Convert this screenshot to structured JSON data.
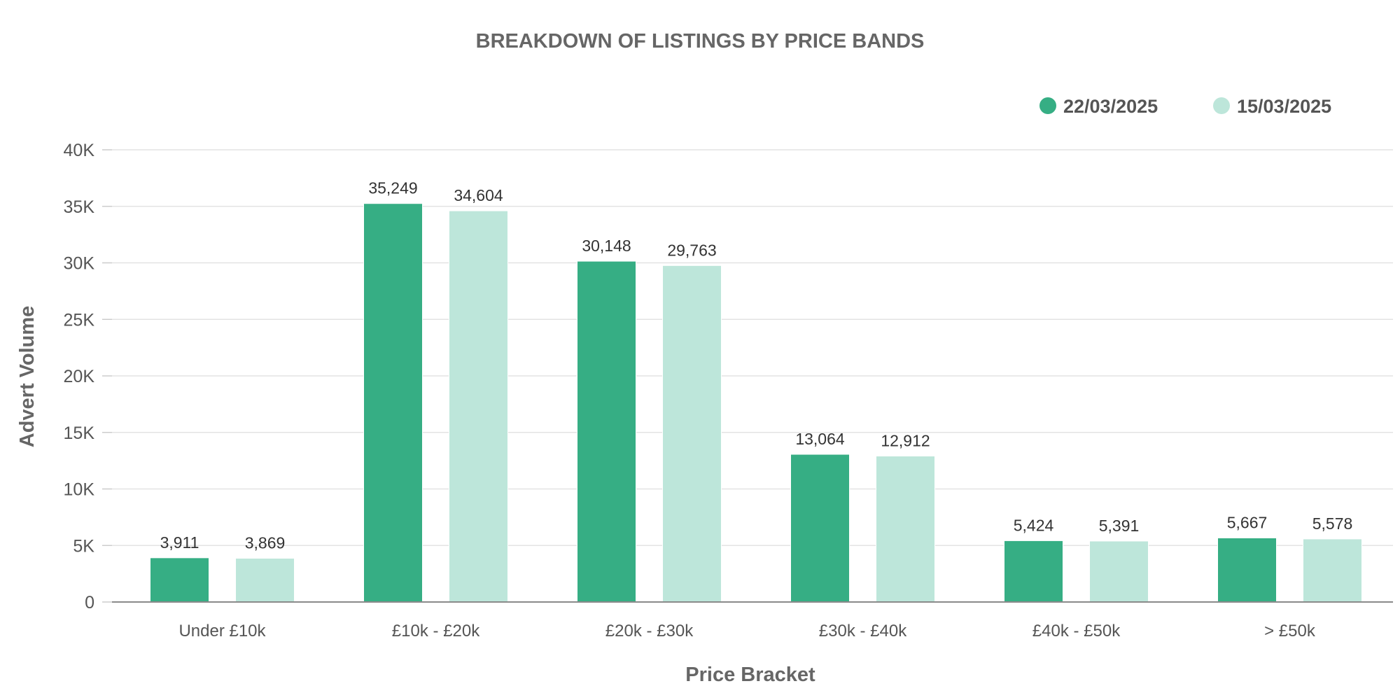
{
  "chart_data": {
    "type": "bar",
    "title": "BREAKDOWN OF LISTINGS BY PRICE BANDS",
    "xlabel": "Price Bracket",
    "ylabel": "Advert Volume",
    "categories": [
      "Under £10k",
      "£10k - £20k",
      "£20k - £30k",
      "£30k - £40k",
      "£40k - £50k",
      "> £50k"
    ],
    "series": [
      {
        "name": "22/03/2025",
        "color": "#36ae84",
        "values": [
          3911,
          35249,
          30148,
          13064,
          5424,
          5667
        ],
        "labels": [
          "3,911",
          "35,249",
          "30,148",
          "13,064",
          "5,424",
          "5,667"
        ]
      },
      {
        "name": "15/03/2025",
        "color": "#bde6da",
        "values": [
          3869,
          34604,
          29763,
          12912,
          5391,
          5578
        ],
        "labels": [
          "3,869",
          "34,604",
          "29,763",
          "12,912",
          "5,391",
          "5,578"
        ]
      }
    ],
    "ylim": [
      0,
      40000
    ],
    "yticks": [
      0,
      5000,
      10000,
      15000,
      20000,
      25000,
      30000,
      35000,
      40000
    ],
    "ytick_labels": [
      "0",
      "5K",
      "10K",
      "15K",
      "20K",
      "25K",
      "30K",
      "35K",
      "40K"
    ],
    "grid": true,
    "legend": "top-right"
  }
}
